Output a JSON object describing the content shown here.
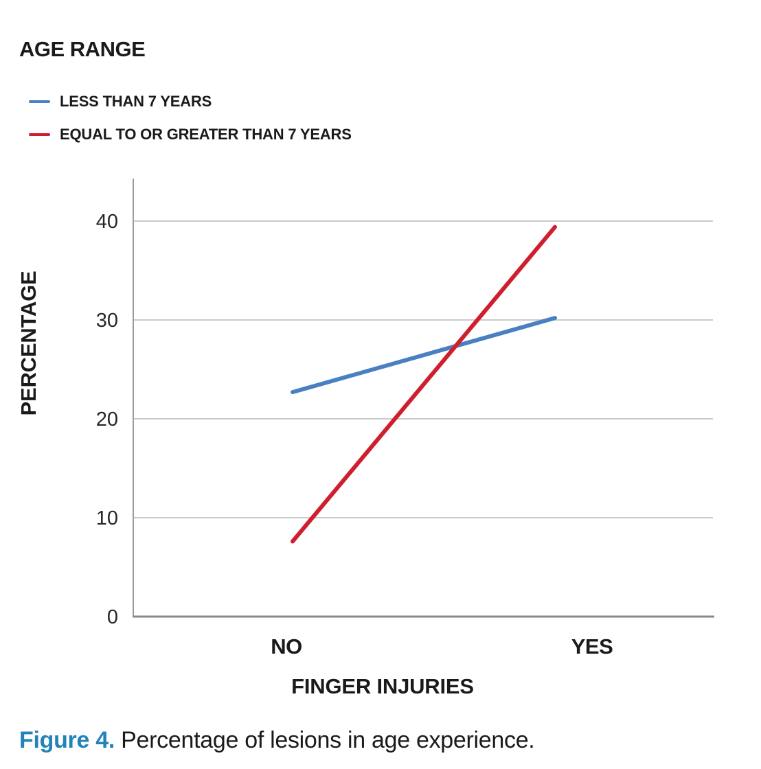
{
  "chart_data": {
    "type": "line",
    "title": "AGE RANGE",
    "categories": [
      "NO",
      "YES"
    ],
    "series": [
      {
        "name": "LESS THAN 7 YEARS",
        "color": "#4a80c2",
        "values": [
          22.7,
          30.2
        ]
      },
      {
        "name": "EQUAL TO OR GREATER THAN 7 YEARS",
        "color": "#cf1e2e",
        "values": [
          7.6,
          39.4
        ]
      }
    ],
    "xlabel": "FINGER INJURIES",
    "ylabel": "PERCENTAGE",
    "yticks": [
      0,
      10,
      20,
      30,
      40
    ],
    "ylim": [
      0,
      44.3
    ],
    "grid": true,
    "legend_position": "top-left",
    "colors": {
      "gridline": "#cacaca",
      "y_axis": "#9b9b9b",
      "x_axis": "#8a8a8a",
      "text": "#1a1a1a"
    }
  },
  "caption": {
    "label": "Figure 4.",
    "text": "Percentage of lesions in age experience."
  }
}
